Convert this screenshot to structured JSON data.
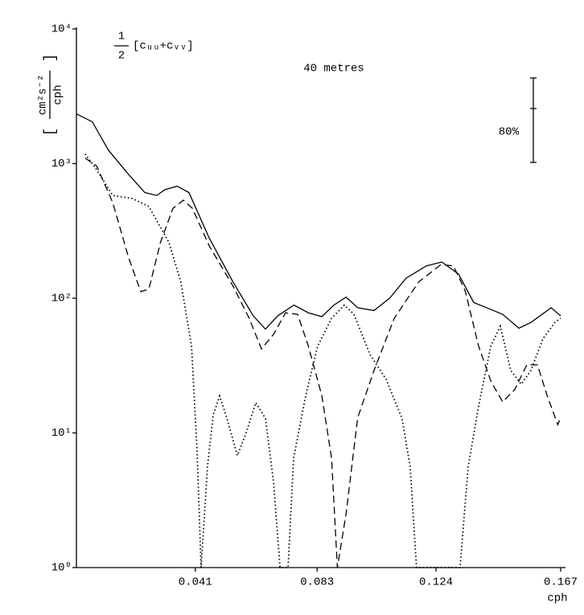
{
  "chart_data": {
    "type": "line",
    "annotation": "40 metres",
    "formula_numerator": "1",
    "formula_denominator": "2",
    "formula_text": "[cᵤᵤ+cᵥᵥ]",
    "confidence_label": "80%",
    "ylabel_numerator": "cm²s⁻²",
    "ylabel_denominator": "cph",
    "xlabel": "cph",
    "log_y": true,
    "xlim": [
      0,
      0.167
    ],
    "xticks": [
      0.041,
      0.083,
      0.124,
      0.167
    ],
    "ylim": [
      1,
      10000
    ],
    "yticks": [
      {
        "value": 1,
        "label": "10⁰"
      },
      {
        "value": 10,
        "label": "10¹"
      },
      {
        "value": 100,
        "label": "10²"
      },
      {
        "value": 1000,
        "label": "10³"
      },
      {
        "value": 10000,
        "label": "10⁴"
      }
    ],
    "series": [
      {
        "color": "#000000",
        "dash": "solid",
        "x": [
          0,
          0.0055,
          0.011,
          0.018,
          0.0236,
          0.0277,
          0.0305,
          0.0347,
          0.0388,
          0.0458,
          0.054,
          0.061,
          0.0652,
          0.0694,
          0.075,
          0.08,
          0.0846,
          0.0888,
          0.093,
          0.097,
          0.1026,
          0.108,
          0.1137,
          0.1207,
          0.126,
          0.1318,
          0.137,
          0.1415,
          0.147,
          0.1526,
          0.1567,
          0.1637,
          0.167
        ],
        "values": [
          2340,
          2040,
          1260,
          830,
          610,
          580,
          640,
          680,
          610,
          280,
          132,
          74,
          59,
          74,
          89,
          78,
          73,
          89,
          102,
          85,
          81,
          100,
          141,
          174,
          186,
          151,
          93,
          85,
          76,
          60,
          66,
          85,
          74
        ]
      },
      {
        "color": "#000000",
        "dash": "dashed",
        "x": [
          0.003,
          0.007,
          0.0125,
          0.018,
          0.0222,
          0.025,
          0.029,
          0.0333,
          0.0369,
          0.04,
          0.0458,
          0.054,
          0.0596,
          0.0638,
          0.068,
          0.0721,
          0.0763,
          0.08,
          0.0846,
          0.088,
          0.09,
          0.093,
          0.097,
          0.1026,
          0.1096,
          0.118,
          0.1257,
          0.13,
          0.134,
          0.1387,
          0.143,
          0.147,
          0.1512,
          0.1553,
          0.159,
          0.1623,
          0.166,
          0.167
        ],
        "values": [
          1100,
          960,
          515,
          200,
          112,
          117,
          260,
          465,
          535,
          465,
          245,
          123,
          71,
          42,
          54,
          78,
          76,
          44,
          19,
          6.5,
          1,
          2.5,
          13,
          29,
          71,
          132,
          178,
          174,
          115,
          44,
          24,
          17,
          21,
          32,
          32,
          19,
          11.5,
          13
        ]
      },
      {
        "color": "#000000",
        "dash": "dotted",
        "x": [
          0.003,
          0.007,
          0.0125,
          0.0194,
          0.025,
          0.0319,
          0.036,
          0.0397,
          0.0416,
          0.043,
          0.0452,
          0.0472,
          0.0494,
          0.0519,
          0.0555,
          0.0583,
          0.0619,
          0.0652,
          0.068,
          0.0702,
          0.073,
          0.0749,
          0.0791,
          0.0832,
          0.088,
          0.0924,
          0.0957,
          0.1013,
          0.1068,
          0.1123,
          0.1151,
          0.1173,
          0.1323,
          0.1351,
          0.1387,
          0.1429,
          0.1462,
          0.1498,
          0.1534,
          0.1567,
          0.1609,
          0.165,
          0.167
        ],
        "values": [
          1180,
          900,
          580,
          550,
          480,
          260,
          132,
          44,
          7.4,
          1,
          5.6,
          13.7,
          18.8,
          12.8,
          6.8,
          9.7,
          16.8,
          12.8,
          4.3,
          1,
          1,
          6.5,
          19,
          44,
          71,
          89,
          76,
          38,
          25,
          12.8,
          5.6,
          1,
          1,
          5.6,
          15.8,
          44,
          62,
          29,
          23,
          29,
          50,
          66,
          71
        ]
      }
    ]
  }
}
